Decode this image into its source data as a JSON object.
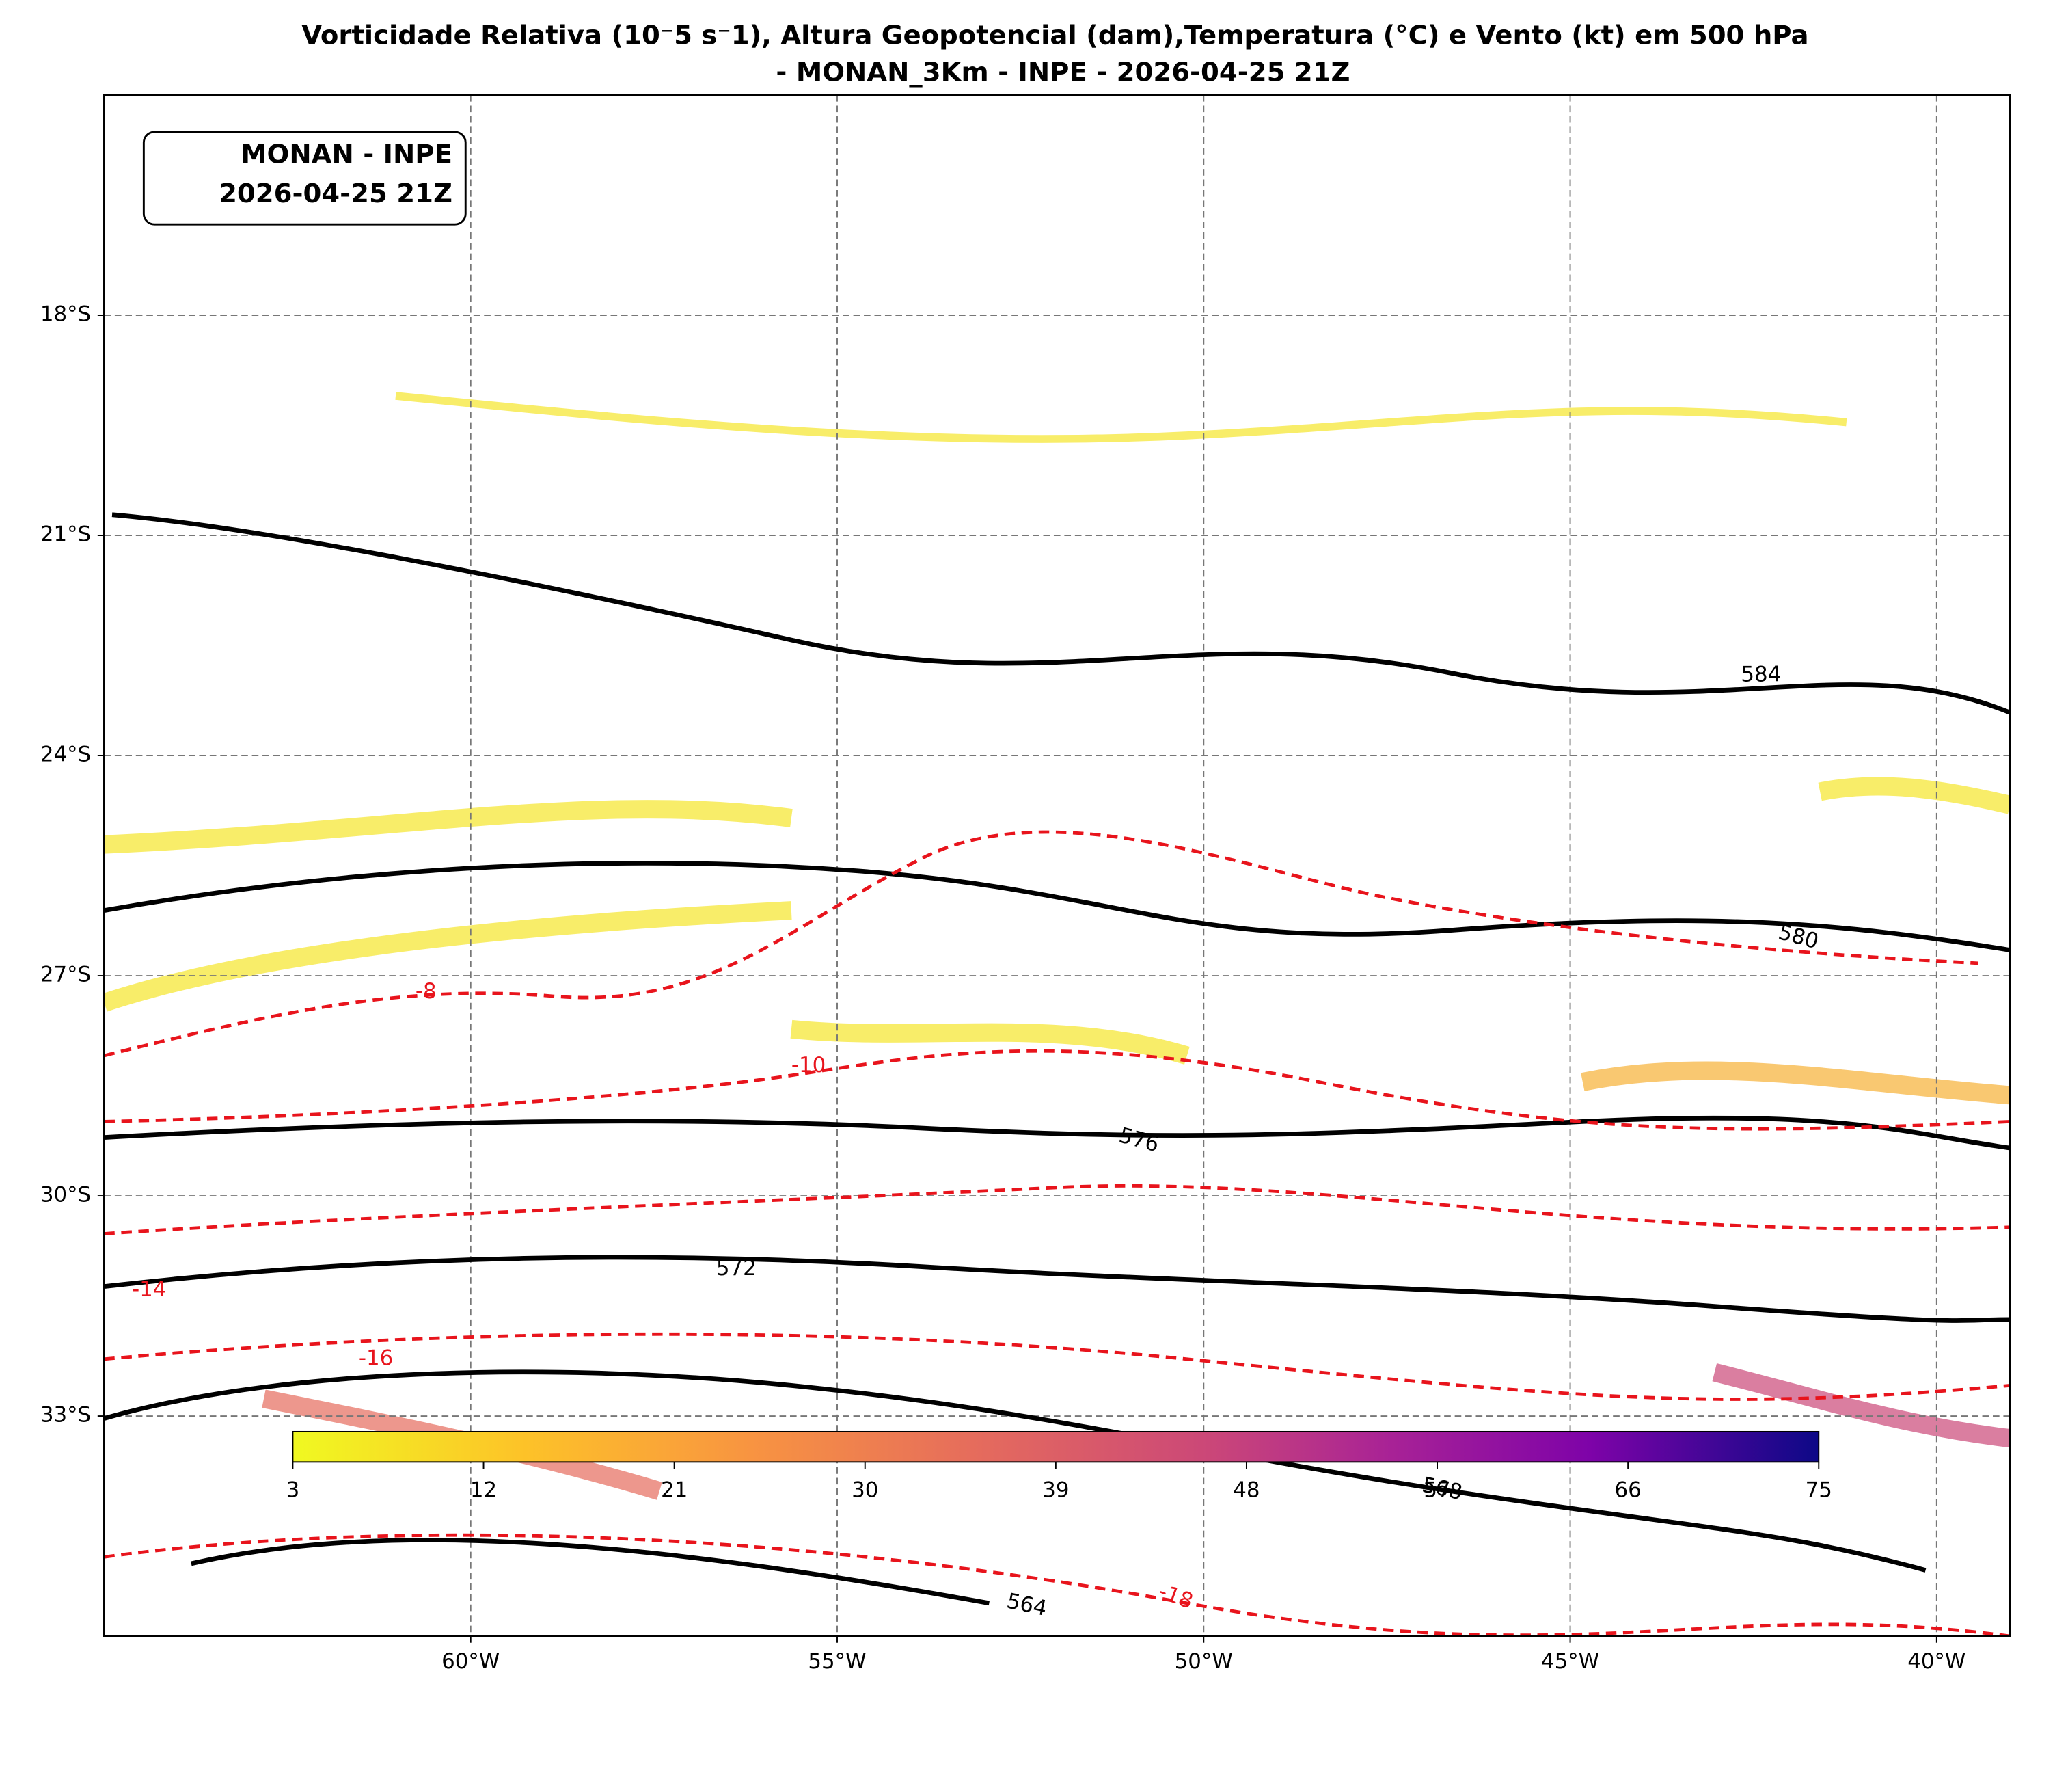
{
  "map": {
    "title": "Vorticidade Relativa (10⁻5 s⁻1), Altura Geopotencial (dam),Temperatura (°C) e Vento (kt) em 500 hPa",
    "subtitle": "- MONAN_3Km - INPE - 2026-04-25 21Z",
    "inset": [
      "MONAN - INPE",
      "2026-04-25 21Z"
    ],
    "xlim": [
      -65,
      -39
    ],
    "ylim": [
      -36,
      -15
    ],
    "xticks": [
      {
        "value": -60,
        "label": "60°W"
      },
      {
        "value": -55,
        "label": "55°W"
      },
      {
        "value": -50,
        "label": "50°W"
      },
      {
        "value": -45,
        "label": "45°W"
      },
      {
        "value": -40,
        "label": "40°W"
      }
    ],
    "yticks": [
      {
        "value": -18,
        "label": "18°S"
      },
      {
        "value": -21,
        "label": "21°S"
      },
      {
        "value": -24,
        "label": "24°S"
      },
      {
        "value": -27,
        "label": "27°S"
      },
      {
        "value": -30,
        "label": "30°S"
      },
      {
        "value": -33,
        "label": "33°S"
      }
    ],
    "grid": true,
    "colorbar": {
      "lim": [
        3,
        75
      ],
      "ticks": [
        3,
        12,
        21,
        30,
        39,
        48,
        57,
        66,
        75
      ]
    },
    "contour_labels": {
      "geopotential": [
        584,
        580,
        576,
        572,
        568,
        564
      ],
      "temperature": [
        -8,
        -10,
        -14,
        -16,
        -18
      ]
    }
  }
}
